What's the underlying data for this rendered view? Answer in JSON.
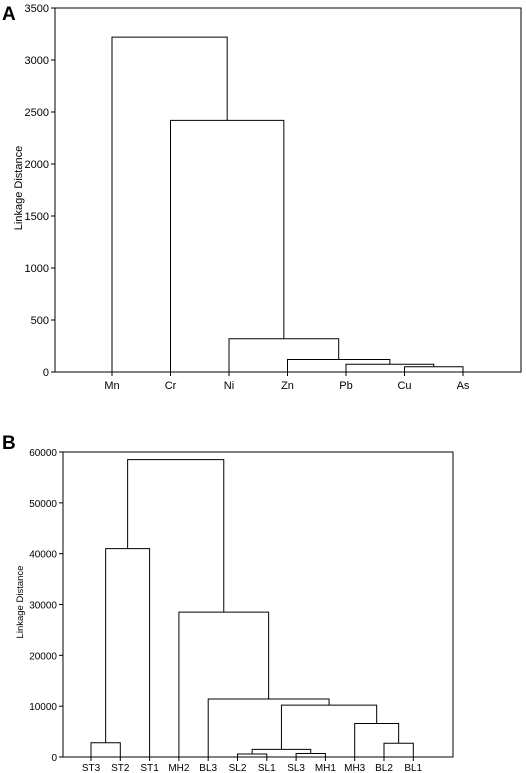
{
  "chart_data": [
    {
      "type": "dendrogram",
      "panel": "A",
      "ylabel": "Linkage Distance",
      "ylim": [
        0,
        3500
      ],
      "yticks": [
        0,
        500,
        1000,
        1500,
        2000,
        2500,
        3000,
        3500
      ],
      "leaves": [
        "Mn",
        "Cr",
        "Ni",
        "Zn",
        "Pb",
        "Cu",
        "As"
      ],
      "merges": [
        {
          "left": "Cu",
          "right": "As",
          "height": 50
        },
        {
          "left": "Pb",
          "right": "Cu+As",
          "height": 75
        },
        {
          "left": "Zn",
          "right": "Pb+Cu+As",
          "height": 120
        },
        {
          "left": "Ni",
          "right": "Zn+Pb+Cu+As",
          "height": 320
        },
        {
          "left": "Cr",
          "right": "Ni+Zn+Pb+Cu+As",
          "height": 2420
        },
        {
          "left": "Mn",
          "right": "Cr+Ni+Zn+Pb+Cu+As",
          "height": 3220
        }
      ]
    },
    {
      "type": "dendrogram",
      "panel": "B",
      "ylabel": "Linkage Distance",
      "ylim": [
        0,
        60000
      ],
      "yticks": [
        0,
        10000,
        20000,
        30000,
        40000,
        50000,
        60000
      ],
      "leaves": [
        "ST3",
        "ST2",
        "ST1",
        "MH2",
        "BL3",
        "SL2",
        "SL1",
        "SL3",
        "MH1",
        "MH3",
        "BL2",
        "BL1"
      ],
      "merges": [
        {
          "left": "SL3",
          "right": "MH1",
          "height": 700
        },
        {
          "left": "SL2",
          "right": "SL1",
          "height": 600
        },
        {
          "left": "SL2+SL1",
          "right": "SL3+MH1",
          "height": 1500
        },
        {
          "left": "BL2",
          "right": "BL1",
          "height": 2700
        },
        {
          "left": "ST3",
          "right": "ST2",
          "height": 2800
        },
        {
          "left": "MH3",
          "right": "BL2+BL1",
          "height": 6600
        },
        {
          "left": "SL2+SL1+SL3+MH1",
          "right": "MH3+BL2+BL1",
          "height": 10200
        },
        {
          "left": "BL3",
          "right": "SL2+SL1+SL3+MH1+MH3+BL2+BL1",
          "height": 11400
        },
        {
          "left": "MH2",
          "right": "BL3+SL2+SL1+SL3+MH1+MH3+BL2+BL1",
          "height": 28500
        },
        {
          "left": "ST3+ST2",
          "right": "ST1",
          "height": 41000
        },
        {
          "left": "ST3+ST2+ST1",
          "right": "MH2+BL3+SL2+SL1+SL3+MH1+MH3+BL2+BL1",
          "height": 58500
        }
      ]
    }
  ]
}
